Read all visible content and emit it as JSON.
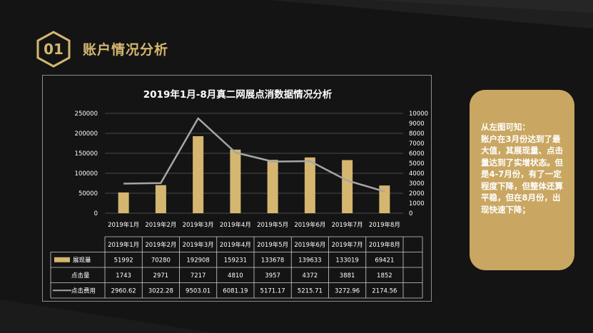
{
  "section": {
    "number": "01",
    "title": "账户情况分析"
  },
  "chart_data": {
    "type": "bar",
    "title": "2019年1月-8月真二网展点消数据情况分析",
    "categories": [
      "2019年1月",
      "2019年2月",
      "2019年3月",
      "2019年4月",
      "2019年5月",
      "2019年6月",
      "2019年7月",
      "2019年8月"
    ],
    "series": [
      {
        "name": "展现量",
        "type": "bar",
        "axis": "left",
        "color": "#d4b670",
        "values": [
          51992,
          70280,
          192908,
          159231,
          133678,
          139633,
          133019,
          69421
        ]
      },
      {
        "name": "点击量",
        "type": "none",
        "axis": "right",
        "color": "#141414",
        "values": [
          1743,
          2971,
          7217,
          4810,
          3957,
          4372,
          3881,
          1852
        ]
      },
      {
        "name": "点击费用",
        "type": "line",
        "axis": "right",
        "color": "#a6a6a6",
        "values": [
          2960.62,
          3022.28,
          9503.01,
          6081.19,
          5171.17,
          5215.71,
          3272.96,
          2174.56
        ]
      }
    ],
    "left_ylim": [
      0,
      250000
    ],
    "left_ticks": [
      "250000",
      "200000",
      "150000",
      "100000",
      "50000",
      "0"
    ],
    "right_ylim": [
      0,
      10000
    ],
    "right_ticks": [
      "10000",
      "9000",
      "8000",
      "7000",
      "6000",
      "5000",
      "4000",
      "3000",
      "2000",
      "1000",
      "0"
    ],
    "table_rows": [
      [
        "51992",
        "70280",
        "192908",
        "159231",
        "133678",
        "139633",
        "133019",
        "69421"
      ],
      [
        "1743",
        "2971",
        "7217",
        "4810",
        "3957",
        "4372",
        "3881",
        "1852"
      ],
      [
        "2960.62",
        "3022.28",
        "9503.01",
        "6081.19",
        "5171.17",
        "5215.71",
        "3272.96",
        "2174.56"
      ]
    ],
    "grid": true
  },
  "note": {
    "text": "从左图可知：\n账户在3月份达到了最大值，其展现量、点击量达到了实增状态。但是4-7月份，有了一定程度下降，但整体还算平稳，但在8月份，出现快速下降；",
    "color": "#c9a762"
  },
  "colors": {
    "background": "#141414",
    "accent": "#d4b670",
    "line": "#a6a6a6"
  }
}
